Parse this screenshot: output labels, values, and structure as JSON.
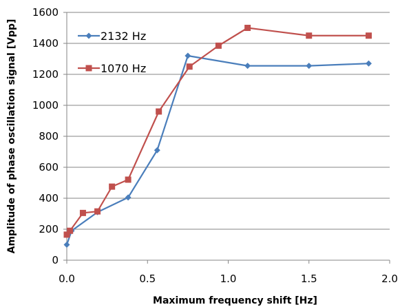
{
  "chart_data": {
    "type": "line",
    "xlabel": "Maximum frequency shift [Hz]",
    "ylabel": "Amplitude of phase oscillation signal [Vpp]",
    "xlim": [
      0,
      2.0
    ],
    "ylim": [
      0,
      1600
    ],
    "xticks": [
      0,
      0.5,
      1.0,
      1.5,
      2.0
    ],
    "xtick_labels": [
      "0.0",
      "0.5",
      "1.0",
      "1.5",
      "2.0"
    ],
    "yticks": [
      0,
      200,
      400,
      600,
      800,
      1000,
      1200,
      1400,
      1600
    ],
    "ytick_labels": [
      "0",
      "200",
      "400",
      "600",
      "800",
      "1000",
      "1200",
      "1400",
      "1600"
    ],
    "grid": "horizontal",
    "legend_position": "top-left",
    "series": [
      {
        "name": "2132 Hz",
        "color": "#4a7ebb",
        "marker": "diamond",
        "x": [
          0.0,
          0.03,
          0.19,
          0.38,
          0.56,
          0.75,
          1.12,
          1.5,
          1.87
        ],
        "y": [
          100,
          190,
          310,
          405,
          710,
          1320,
          1255,
          1255,
          1270
        ]
      },
      {
        "name": "1070 Hz",
        "color": "#c0504d",
        "marker": "square",
        "x": [
          0.0,
          0.02,
          0.1,
          0.19,
          0.28,
          0.38,
          0.57,
          0.76,
          0.94,
          1.12,
          1.5,
          1.87
        ],
        "y": [
          165,
          190,
          305,
          315,
          475,
          520,
          960,
          1250,
          1385,
          1500,
          1450,
          1450
        ]
      }
    ]
  }
}
